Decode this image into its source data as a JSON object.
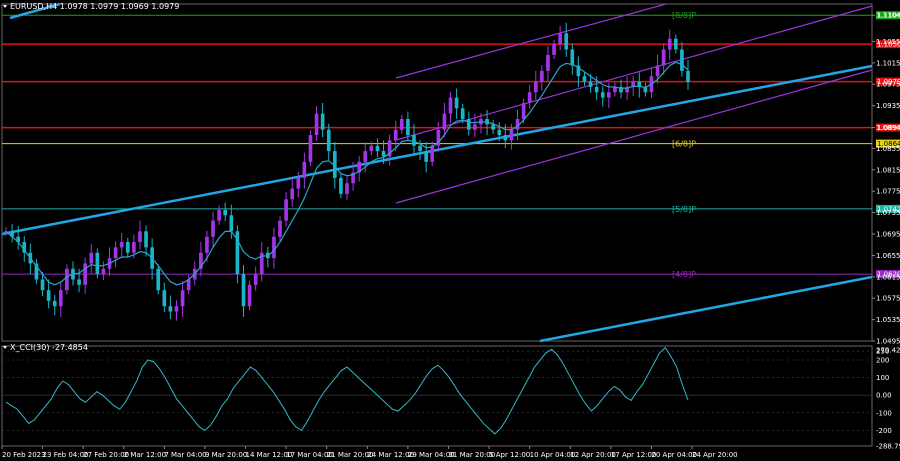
{
  "header": {
    "symbol_line": "EURUSD,H4  1.0978 1.0979 1.0969 1.0979",
    "indicator_line": "X_CCI(30) -27.4854"
  },
  "colors": {
    "background": "#000000",
    "bull": "#a335e8",
    "bear": "#19b6c8",
    "ma": "#2aa6c8",
    "trend": "#22a6e6",
    "channel": "#9b34e0",
    "resistance": "#e01414",
    "murrey_green": "#1aa41a",
    "murrey_yellow": "#e6d21a",
    "murrey_teal": "#1ab4a8",
    "murrey_purple": "#9b28c8",
    "cci": "#33b8c8"
  },
  "chart_data": [
    {
      "type": "candlestick",
      "title": "EURUSD,H4",
      "y_axis_ticks": [
        "1.1104",
        "1.1055",
        "1.1015",
        "1.0975",
        "1.0935",
        "1.0894",
        "1.0855",
        "1.0815",
        "1.0775",
        "1.0735",
        "1.0695",
        "1.0655",
        "1.0615",
        "1.0575",
        "1.0535",
        "1.0495"
      ],
      "ylim": [
        1.0495,
        1.1125
      ],
      "x_ticks": [
        "20 Feb 2023",
        "23 Feb 04:00",
        "27 Feb 20:00",
        "2 Mar 12:00",
        "7 Mar 04:00",
        "9 Mar 20:00",
        "14 Mar 12:00",
        "17 Mar 04:00",
        "21 Mar 20:00",
        "24 Mar 12:00",
        "29 Mar 04:00",
        "31 Mar 20:00",
        "5 Apr 12:00",
        "10 Apr 04:00",
        "12 Apr 20:00",
        "17 Apr 12:00",
        "20 Apr 04:00",
        "24 Apr 20:00"
      ],
      "close_path": [
        1.07,
        1.069,
        1.068,
        1.066,
        1.064,
        1.061,
        1.059,
        1.057,
        1.056,
        1.059,
        1.063,
        1.061,
        1.06,
        1.064,
        1.066,
        1.062,
        1.063,
        1.065,
        1.067,
        1.068,
        1.066,
        1.068,
        1.07,
        1.067,
        1.063,
        1.059,
        1.056,
        1.055,
        1.056,
        1.059,
        1.061,
        1.063,
        1.066,
        1.069,
        1.072,
        1.074,
        1.073,
        1.07,
        1.062,
        1.056,
        1.06,
        1.062,
        1.066,
        1.065,
        1.069,
        1.072,
        1.076,
        1.078,
        1.08,
        1.083,
        1.088,
        1.092,
        1.089,
        1.085,
        1.08,
        1.077,
        1.079,
        1.081,
        1.083,
        1.085,
        1.086,
        1.085,
        1.084,
        1.087,
        1.089,
        1.091,
        1.088,
        1.086,
        1.085,
        1.083,
        1.086,
        1.089,
        1.092,
        1.095,
        1.093,
        1.091,
        1.089,
        1.09,
        1.091,
        1.09,
        1.089,
        1.088,
        1.087,
        1.089,
        1.091,
        1.094,
        1.096,
        1.098,
        1.1,
        1.103,
        1.105,
        1.107,
        1.104,
        1.101,
        1.099,
        1.098,
        1.097,
        1.096,
        1.095,
        1.096,
        1.097,
        1.096,
        1.097,
        1.098,
        1.097,
        1.096,
        1.099,
        1.101,
        1.104,
        1.106,
        1.104,
        1.1,
        1.0979
      ],
      "moving_average_path": [
        1.07,
        1.069,
        1.068,
        1.0665,
        1.065,
        1.0635,
        1.062,
        1.0605,
        1.06,
        1.0605,
        1.0615,
        1.062,
        1.0622,
        1.063,
        1.0638,
        1.0635,
        1.0636,
        1.064,
        1.0646,
        1.0652,
        1.0652,
        1.0656,
        1.0662,
        1.066,
        1.065,
        1.0636,
        1.062,
        1.0606,
        1.06,
        1.0603,
        1.061,
        1.062,
        1.0634,
        1.065,
        1.067,
        1.0688,
        1.07,
        1.07,
        1.0684,
        1.0662,
        1.0652,
        1.0648,
        1.0654,
        1.0654,
        1.0664,
        1.068,
        1.07,
        1.072,
        1.074,
        1.0762,
        1.079,
        1.0818,
        1.083,
        1.0832,
        1.0822,
        1.0808,
        1.0804,
        1.0806,
        1.0812,
        1.082,
        1.083,
        1.0836,
        1.0838,
        1.0846,
        1.0856,
        1.0868,
        1.087,
        1.0868,
        1.0864,
        1.0856,
        1.0858,
        1.0866,
        1.088,
        1.0898,
        1.0906,
        1.0908,
        1.0904,
        1.0903,
        1.0905,
        1.0904,
        1.0901,
        1.0896,
        1.089,
        1.089,
        1.0896,
        1.0908,
        1.0922,
        1.0938,
        1.0954,
        1.0972,
        1.099,
        1.1008,
        1.1014,
        1.1012,
        1.1006,
        1.0998,
        1.099,
        1.0982,
        1.0974,
        1.097,
        1.097,
        1.0967,
        1.0968,
        1.0971,
        1.0971,
        1.0969,
        1.0975,
        1.0984,
        1.0997,
        1.101,
        1.1016,
        1.1012,
        1.1002
      ],
      "horizontal_levels": [
        {
          "name": "murrey-8-8",
          "value": 1.1104,
          "color": "#1aa41a",
          "label": "[8/8]P",
          "tag": "1.1104"
        },
        {
          "name": "resistance-upper",
          "value": 1.105,
          "color": "#e01414",
          "label": "",
          "tag": "1.1050"
        },
        {
          "name": "resistance-mid",
          "value": 1.098,
          "color": "#e01414",
          "label": "",
          "tag": "1.0979"
        },
        {
          "name": "support-red",
          "value": 1.0894,
          "color": "#e01414",
          "label": "",
          "tag": "1.0894"
        },
        {
          "name": "murrey-6-8",
          "value": 1.0864,
          "color": "#e6d21a",
          "label": "[6/8]P",
          "tag": "1.0864"
        },
        {
          "name": "murrey-5-8",
          "value": 1.0742,
          "color": "#1ab4a8",
          "label": "[5/8]P",
          "tag": "1.0742"
        },
        {
          "name": "murrey-4-8",
          "value": 1.062,
          "color": "#9b28c8",
          "label": "[4/8]P",
          "tag": "1.0620"
        }
      ]
    },
    {
      "type": "line",
      "title": "X_CCI(30) -27.4854",
      "y_axis_ticks": [
        "279.4203",
        "250",
        "200",
        "100",
        "0.00",
        "-100",
        "-200",
        "-288.7998"
      ],
      "ylim": [
        -288.7998,
        279.4203
      ],
      "values": [
        -40,
        -60,
        -80,
        -120,
        -160,
        -140,
        -100,
        -60,
        -20,
        40,
        80,
        60,
        20,
        -20,
        -40,
        -10,
        20,
        0,
        -30,
        -60,
        -80,
        -40,
        20,
        80,
        160,
        200,
        190,
        150,
        100,
        40,
        -20,
        -60,
        -100,
        -140,
        -180,
        -200,
        -170,
        -120,
        -60,
        -20,
        40,
        80,
        120,
        160,
        140,
        100,
        60,
        20,
        -30,
        -80,
        -140,
        -180,
        -200,
        -150,
        -90,
        -30,
        20,
        60,
        100,
        140,
        160,
        130,
        100,
        70,
        40,
        10,
        -20,
        -50,
        -80,
        -90,
        -60,
        -30,
        10,
        60,
        110,
        150,
        170,
        140,
        100,
        50,
        0,
        -40,
        -80,
        -120,
        -160,
        -190,
        -220,
        -190,
        -140,
        -80,
        -20,
        40,
        100,
        160,
        200,
        240,
        260,
        230,
        180,
        120,
        60,
        0,
        -50,
        -90,
        -60,
        -20,
        20,
        50,
        30,
        -10,
        -30,
        20,
        60,
        120,
        180,
        240,
        270,
        220,
        160,
        60,
        -27.4854
      ]
    }
  ]
}
